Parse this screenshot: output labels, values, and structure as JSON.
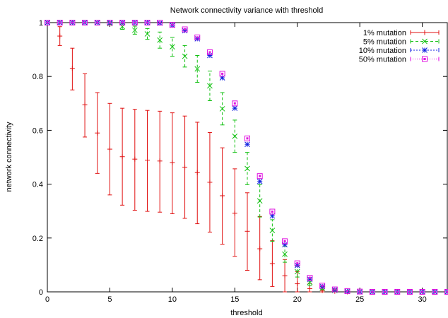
{
  "chart_data": {
    "type": "scatter",
    "title": "Network connectivity variance with threshold",
    "xlabel": "threshold",
    "ylabel": "network connectivity",
    "xlim": [
      0,
      32
    ],
    "ylim": [
      0,
      1
    ],
    "x_ticks": [
      "0",
      "5",
      "10",
      "15",
      "20",
      "25",
      "30"
    ],
    "y_ticks": [
      "0",
      "0.2",
      "0.4",
      "0.6",
      "0.8",
      "1"
    ],
    "legend_position": "top-right",
    "grid": false,
    "series": [
      {
        "name": "1% mutation",
        "color": "#e01010",
        "marker": "plus",
        "x": [
          0,
          1,
          2,
          3,
          4,
          5,
          6,
          7,
          8,
          9,
          10,
          11,
          12,
          13,
          14,
          15,
          16,
          17,
          18,
          19,
          20,
          21,
          22,
          23,
          24,
          25,
          26,
          27,
          28,
          29,
          30,
          31,
          32
        ],
        "y": [
          1.0,
          0.95,
          0.83,
          0.695,
          0.59,
          0.53,
          0.502,
          0.493,
          0.489,
          0.486,
          0.48,
          0.463,
          0.443,
          0.407,
          0.357,
          0.292,
          0.225,
          0.16,
          0.105,
          0.06,
          0.03,
          0.012,
          0.005,
          0.002,
          0,
          0,
          0,
          0,
          0,
          0,
          0,
          0,
          0
        ],
        "err_low": [
          0,
          0.035,
          0.08,
          0.12,
          0.15,
          0.17,
          0.18,
          0.19,
          0.19,
          0.19,
          0.19,
          0.19,
          0.19,
          0.185,
          0.18,
          0.16,
          0.145,
          0.115,
          0.085,
          0.06,
          0.03,
          0.012,
          0.005,
          0.002,
          0,
          0,
          0,
          0,
          0,
          0,
          0,
          0,
          0
        ],
        "err_high": [
          0,
          0.035,
          0.075,
          0.115,
          0.15,
          0.17,
          0.18,
          0.185,
          0.185,
          0.185,
          0.185,
          0.19,
          0.187,
          0.185,
          0.178,
          0.165,
          0.143,
          0.12,
          0.085,
          0.06,
          0.045,
          0.02,
          0.01,
          0.004,
          0,
          0,
          0,
          0,
          0,
          0,
          0,
          0,
          0
        ]
      },
      {
        "name": "5% mutation",
        "color": "#10c010",
        "marker": "cross",
        "x": [
          0,
          1,
          2,
          3,
          4,
          5,
          6,
          7,
          8,
          9,
          10,
          11,
          12,
          13,
          14,
          15,
          16,
          17,
          18,
          19,
          20,
          21,
          22,
          23,
          24,
          25,
          26,
          27,
          28,
          29,
          30,
          31,
          32
        ],
        "y": [
          1.0,
          1.0,
          1.0,
          1.0,
          1.0,
          0.996,
          0.985,
          0.972,
          0.958,
          0.935,
          0.91,
          0.875,
          0.828,
          0.765,
          0.68,
          0.578,
          0.458,
          0.338,
          0.228,
          0.14,
          0.075,
          0.035,
          0.014,
          0.005,
          0.002,
          0,
          0,
          0,
          0,
          0,
          0,
          0,
          0
        ],
        "err_low": [
          0,
          0,
          0,
          0,
          0,
          0.005,
          0.01,
          0.015,
          0.02,
          0.03,
          0.035,
          0.04,
          0.05,
          0.055,
          0.06,
          0.06,
          0.06,
          0.06,
          0.04,
          0.03,
          0.02,
          0.012,
          0.006,
          0.003,
          0.001,
          0,
          0,
          0,
          0,
          0,
          0,
          0,
          0
        ],
        "err_high": [
          0,
          0,
          0,
          0,
          0,
          0.004,
          0.01,
          0.015,
          0.02,
          0.03,
          0.035,
          0.04,
          0.05,
          0.055,
          0.06,
          0.06,
          0.06,
          0.06,
          0.04,
          0.03,
          0.02,
          0.012,
          0.006,
          0.003,
          0.001,
          0,
          0,
          0,
          0,
          0,
          0,
          0,
          0
        ]
      },
      {
        "name": "10% mutation",
        "color": "#1020e0",
        "marker": "star",
        "x": [
          0,
          1,
          2,
          3,
          4,
          5,
          6,
          7,
          8,
          9,
          10,
          11,
          12,
          13,
          14,
          15,
          16,
          17,
          18,
          19,
          20,
          21,
          22,
          23,
          24,
          25,
          26,
          27,
          28,
          29,
          30,
          31,
          32
        ],
        "y": [
          1.0,
          1.0,
          1.0,
          1.0,
          1.0,
          1.0,
          1.0,
          1.0,
          1.0,
          0.998,
          0.99,
          0.97,
          0.94,
          0.878,
          0.795,
          0.682,
          0.548,
          0.41,
          0.282,
          0.175,
          0.098,
          0.047,
          0.02,
          0.007,
          0.002,
          0,
          0,
          0,
          0,
          0,
          0,
          0,
          0
        ],
        "err_low": [
          0,
          0,
          0,
          0,
          0,
          0,
          0,
          0,
          0,
          0,
          0,
          0,
          0,
          0,
          0,
          0,
          0,
          0,
          0,
          0,
          0,
          0,
          0,
          0,
          0,
          0,
          0,
          0,
          0,
          0,
          0,
          0,
          0
        ],
        "err_high": [
          0,
          0,
          0,
          0,
          0,
          0,
          0,
          0,
          0,
          0,
          0,
          0,
          0,
          0,
          0,
          0,
          0,
          0,
          0,
          0,
          0,
          0,
          0,
          0,
          0,
          0,
          0,
          0,
          0,
          0,
          0,
          0,
          0
        ]
      },
      {
        "name": "50% mutation",
        "color": "#e010e0",
        "marker": "box",
        "x": [
          0,
          1,
          2,
          3,
          4,
          5,
          6,
          7,
          8,
          9,
          10,
          11,
          12,
          13,
          14,
          15,
          16,
          17,
          18,
          19,
          20,
          21,
          22,
          23,
          24,
          25,
          26,
          27,
          28,
          29,
          30,
          31,
          32
        ],
        "y": [
          1.0,
          1.0,
          1.0,
          1.0,
          1.0,
          1.0,
          1.0,
          1.0,
          1.0,
          1.0,
          0.992,
          0.975,
          0.945,
          0.89,
          0.81,
          0.7,
          0.57,
          0.43,
          0.298,
          0.188,
          0.106,
          0.052,
          0.023,
          0.009,
          0.003,
          0.001,
          0,
          0,
          0,
          0,
          0,
          0,
          0
        ],
        "err_low": [
          0,
          0,
          0,
          0,
          0,
          0,
          0,
          0,
          0,
          0,
          0,
          0,
          0,
          0,
          0,
          0,
          0,
          0,
          0,
          0,
          0,
          0,
          0,
          0,
          0,
          0,
          0,
          0,
          0,
          0,
          0,
          0,
          0
        ],
        "err_high": [
          0,
          0,
          0,
          0,
          0,
          0,
          0,
          0,
          0,
          0,
          0,
          0,
          0,
          0,
          0,
          0,
          0,
          0,
          0,
          0,
          0,
          0,
          0,
          0,
          0,
          0,
          0,
          0,
          0,
          0,
          0,
          0,
          0
        ]
      }
    ]
  }
}
